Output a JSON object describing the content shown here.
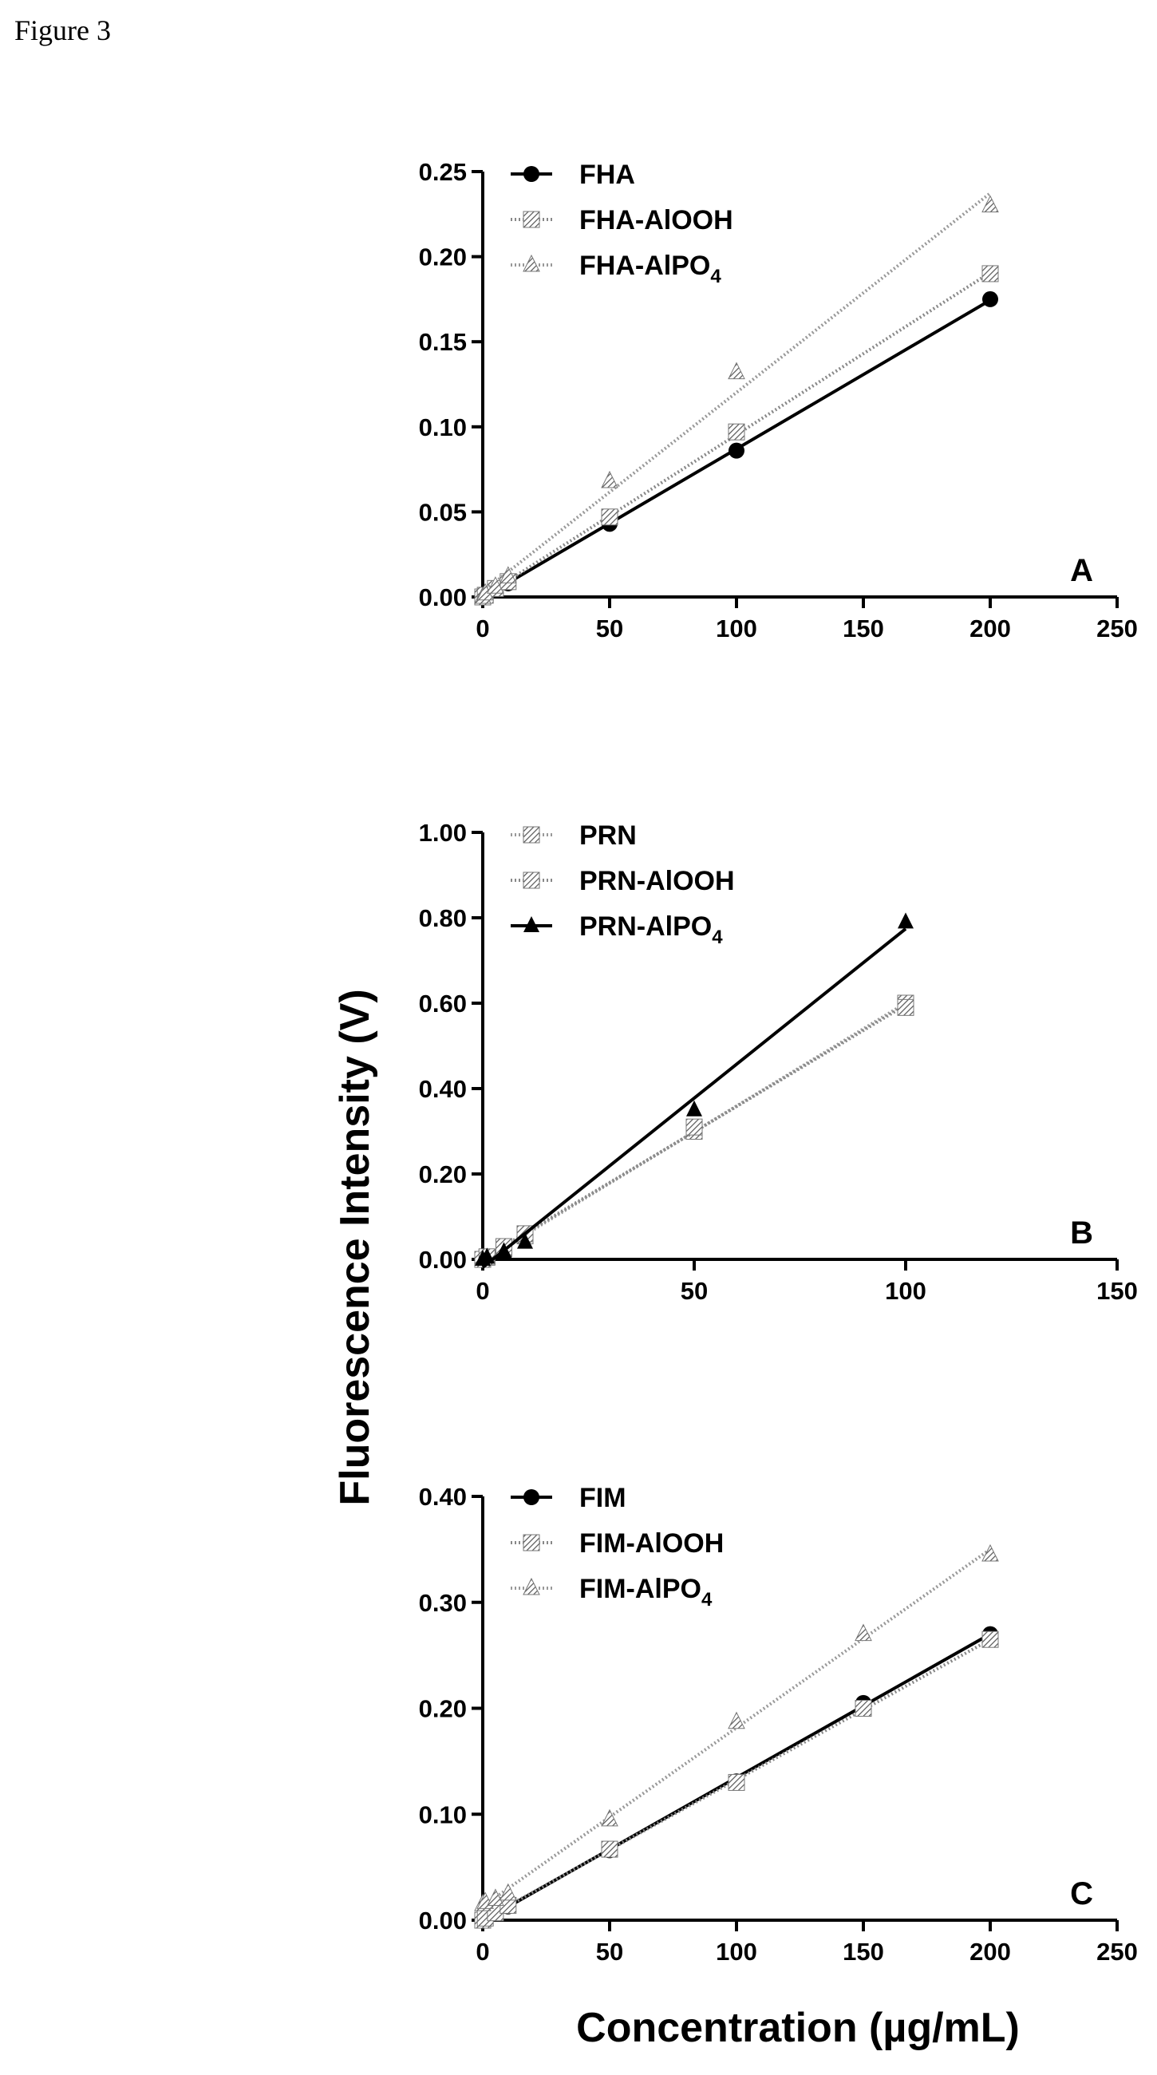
{
  "figure_caption": "Figure 3",
  "shared_labels": {
    "ylabel": "Fluorescence Intensity (V)",
    "xlabel": "Concentration (µg/mL)"
  },
  "chart_data": [
    {
      "type": "line",
      "panel": "A",
      "xlim": [
        0,
        250
      ],
      "ylim": [
        0,
        0.25
      ],
      "xticks": [
        "0",
        "50",
        "100",
        "150",
        "200",
        "250"
      ],
      "yticks": [
        "0.00",
        "0.05",
        "0.10",
        "0.15",
        "0.20",
        "0.25"
      ],
      "legend_position": "top-left",
      "series": [
        {
          "name": "FHA",
          "marker": "circle",
          "line": "solid",
          "color": "#000000",
          "points": [
            [
              0,
              0.0
            ],
            [
              1,
              0.001
            ],
            [
              5,
              0.004
            ],
            [
              10,
              0.008
            ],
            [
              50,
              0.043
            ],
            [
              100,
              0.086
            ],
            [
              200,
              0.175
            ]
          ]
        },
        {
          "name": "FHA-AlOOH",
          "marker": "square-hatched",
          "line": "dotted",
          "color": "#888888",
          "points": [
            [
              0,
              0.0
            ],
            [
              1,
              0.001
            ],
            [
              5,
              0.005
            ],
            [
              10,
              0.009
            ],
            [
              50,
              0.047
            ],
            [
              100,
              0.097
            ],
            [
              200,
              0.19
            ]
          ]
        },
        {
          "name": "FHA-AlPO4",
          "marker": "triangle-hatched",
          "line": "dotted",
          "color": "#999999",
          "points": [
            [
              0,
              0.0
            ],
            [
              1,
              0.002
            ],
            [
              5,
              0.006
            ],
            [
              10,
              0.012
            ],
            [
              50,
              0.068
            ],
            [
              100,
              0.132
            ],
            [
              200,
              0.23
            ]
          ]
        }
      ]
    },
    {
      "type": "line",
      "panel": "B",
      "xlim": [
        0,
        150
      ],
      "ylim": [
        0,
        1.0
      ],
      "xticks": [
        "0",
        "50",
        "100",
        "150"
      ],
      "yticks": [
        "0.00",
        "0.20",
        "0.40",
        "0.60",
        "0.80",
        "1.00"
      ],
      "legend_position": "top-left",
      "series": [
        {
          "name": "PRN",
          "marker": "square-hatched",
          "line": "dotted",
          "color": "#999999",
          "points": [
            [
              0,
              0.0
            ],
            [
              1,
              0.005
            ],
            [
              5,
              0.025
            ],
            [
              10,
              0.055
            ],
            [
              50,
              0.3
            ],
            [
              100,
              0.6
            ]
          ]
        },
        {
          "name": "PRN-AlOOH",
          "marker": "square-hatched",
          "line": "dotted",
          "color": "#888888",
          "points": [
            [
              0,
              0.0
            ],
            [
              1,
              0.006
            ],
            [
              5,
              0.03
            ],
            [
              10,
              0.06
            ],
            [
              50,
              0.31
            ],
            [
              100,
              0.59
            ]
          ]
        },
        {
          "name": "PRN-AlPO4",
          "marker": "triangle",
          "line": "solid",
          "color": "#000000",
          "points": [
            [
              0,
              0.0
            ],
            [
              1,
              0.005
            ],
            [
              5,
              0.018
            ],
            [
              10,
              0.04
            ],
            [
              50,
              0.35
            ],
            [
              100,
              0.79
            ]
          ]
        }
      ]
    },
    {
      "type": "line",
      "panel": "C",
      "xlim": [
        0,
        250
      ],
      "ylim": [
        0,
        0.4
      ],
      "xticks": [
        "0",
        "50",
        "100",
        "150",
        "200",
        "250"
      ],
      "yticks": [
        "0.00",
        "0.10",
        "0.20",
        "0.30",
        "0.40"
      ],
      "legend_position": "top-left",
      "series": [
        {
          "name": "FIM",
          "marker": "circle",
          "line": "solid",
          "color": "#000000",
          "points": [
            [
              0,
              0.0
            ],
            [
              1,
              0.001
            ],
            [
              5,
              0.006
            ],
            [
              10,
              0.013
            ],
            [
              50,
              0.066
            ],
            [
              100,
              0.131
            ],
            [
              150,
              0.205
            ],
            [
              200,
              0.27
            ]
          ]
        },
        {
          "name": "FIM-AlOOH",
          "marker": "square-hatched",
          "line": "dotted",
          "color": "#888888",
          "points": [
            [
              0,
              0.0
            ],
            [
              1,
              0.002
            ],
            [
              5,
              0.007
            ],
            [
              10,
              0.014
            ],
            [
              50,
              0.067
            ],
            [
              100,
              0.13
            ],
            [
              150,
              0.2
            ],
            [
              200,
              0.265
            ]
          ]
        },
        {
          "name": "FIM-AlPO4",
          "marker": "triangle-hatched",
          "line": "dotted",
          "color": "#999999",
          "points": [
            [
              0,
              0.015
            ],
            [
              1,
              0.017
            ],
            [
              5,
              0.02
            ],
            [
              10,
              0.025
            ],
            [
              50,
              0.095
            ],
            [
              100,
              0.187
            ],
            [
              150,
              0.27
            ],
            [
              200,
              0.345
            ]
          ]
        }
      ]
    }
  ],
  "legend_labels": [
    [
      {
        "prefix": "FHA",
        "sub": "",
        "suffix": ""
      },
      {
        "prefix": "FHA-AlOOH",
        "sub": "",
        "suffix": ""
      },
      {
        "prefix": "FHA-AlPO",
        "sub": "4",
        "suffix": ""
      }
    ],
    [
      {
        "prefix": "PRN",
        "sub": "",
        "suffix": ""
      },
      {
        "prefix": "PRN-AlOOH",
        "sub": "",
        "suffix": ""
      },
      {
        "prefix": "PRN-AlPO",
        "sub": "4",
        "suffix": ""
      }
    ],
    [
      {
        "prefix": "FIM",
        "sub": "",
        "suffix": ""
      },
      {
        "prefix": "FIM-AlOOH",
        "sub": "",
        "suffix": ""
      },
      {
        "prefix": "FIM-AlPO",
        "sub": "4",
        "suffix": ""
      }
    ]
  ]
}
